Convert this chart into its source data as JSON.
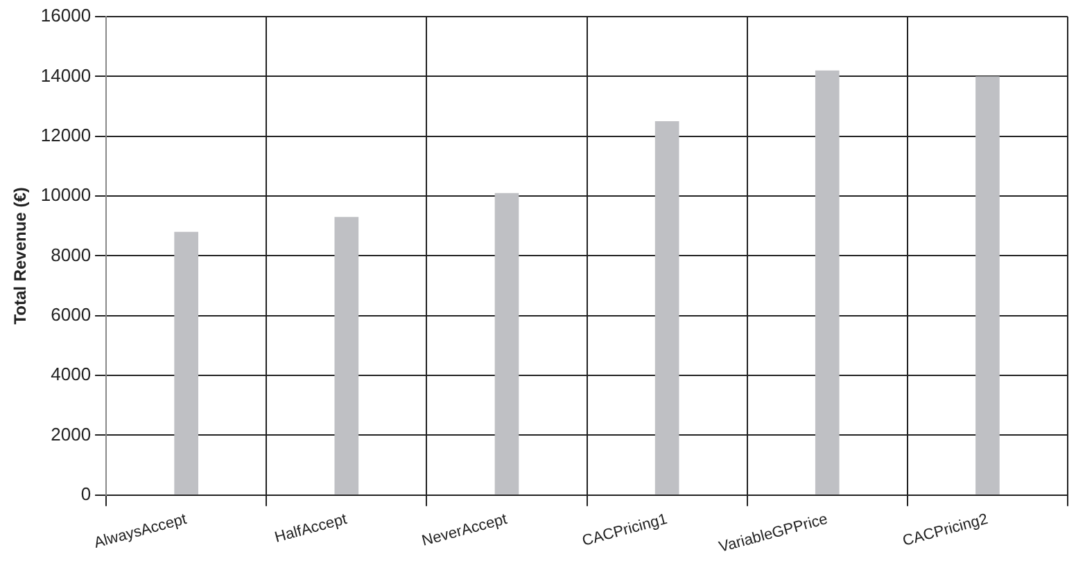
{
  "chart_data": {
    "type": "bar",
    "ylabel": "Total Revenue (€)",
    "categories": [
      "AlwaysAccept",
      "HalfAccept",
      "NeverAccept",
      "CACPricing1",
      "VariableGPPrice",
      "CACPricing2"
    ],
    "values": [
      8800,
      9300,
      10100,
      12500,
      14200,
      14000
    ],
    "color": "#bfc0c4",
    "ylim": [
      0,
      16000
    ],
    "yticks": [
      0,
      2000,
      4000,
      6000,
      8000,
      10000,
      12000,
      14000,
      16000
    ],
    "grid": true,
    "legend": false
  }
}
